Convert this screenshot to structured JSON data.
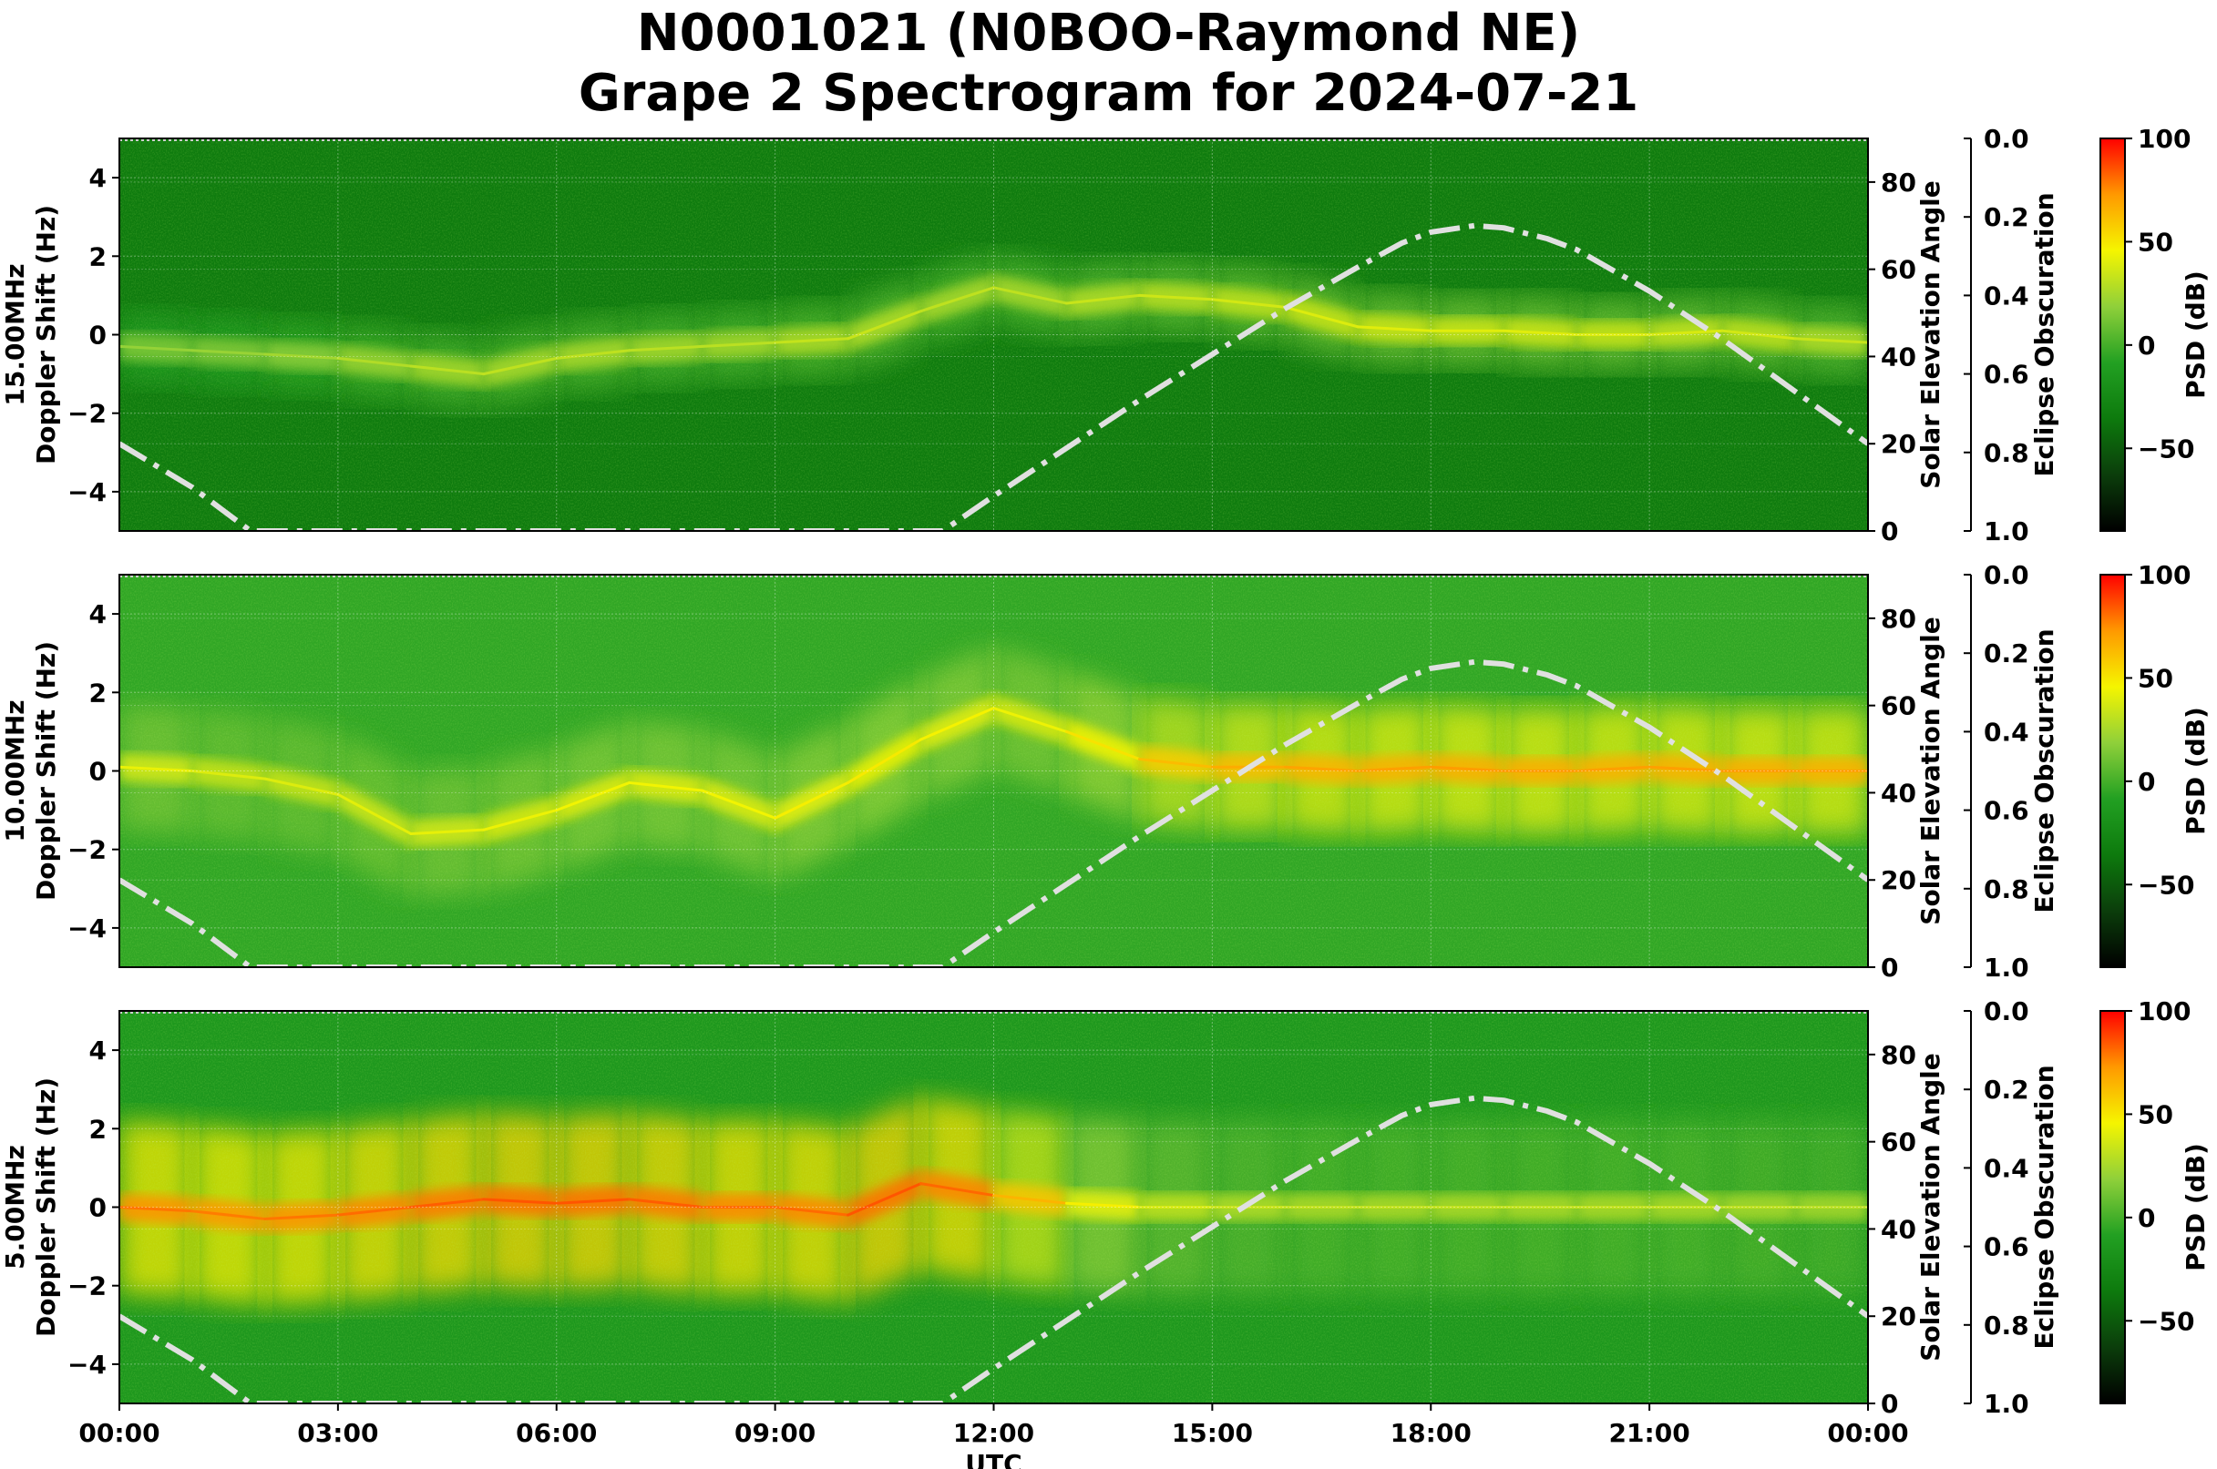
{
  "title": {
    "line1": "N0001021 (N0BOO-Raymond NE)",
    "line2": "Grape 2 Spectrogram for 2024-07-21"
  },
  "chart_data": {
    "type": "heatmap",
    "x_axis": {
      "label": "UTC",
      "ticks": [
        "00:00",
        "03:00",
        "06:00",
        "09:00",
        "12:00",
        "15:00",
        "18:00",
        "21:00",
        "00:00"
      ],
      "range_hours": [
        0,
        24
      ]
    },
    "colorbar": {
      "label": "PSD (dB)",
      "range": [
        -90,
        100
      ],
      "ticks": [
        100,
        50,
        0,
        -50
      ],
      "tick_labels": [
        "100",
        "50",
        "0",
        "−50"
      ],
      "colors": [
        "#000000",
        "#0b3d0b",
        "#0d7a0d",
        "#22a022",
        "#8fd03a",
        "#f5f500",
        "#ff9900",
        "#ff0000"
      ]
    },
    "right_axis": {
      "label": "Solar Elevation Angle",
      "range": [
        0,
        90
      ],
      "ticks": [
        0,
        20,
        40,
        60,
        80
      ]
    },
    "eclipse_axis": {
      "label": "Eclipse Obscuration",
      "range": [
        0,
        1
      ],
      "inverted": true,
      "tick_labels": [
        "0.0",
        "0.2",
        "0.4",
        "0.6",
        "0.8",
        "1.0"
      ]
    },
    "solar_elevation_curve": {
      "style": "dash-dot",
      "color": "#e0e0e0",
      "hours": [
        0,
        1,
        1.8,
        11.3,
        12,
        13,
        14,
        15,
        16,
        17,
        17.6,
        18,
        18.6,
        19,
        19.6,
        20,
        21,
        22,
        23,
        24
      ],
      "degrees": [
        20,
        10,
        0,
        0,
        8,
        19,
        30,
        40.5,
        51,
        60.5,
        66,
        68.5,
        70,
        69.5,
        67,
        64.5,
        55,
        44,
        32,
        20
      ]
    },
    "panels": [
      {
        "label": "15.00MHz",
        "ylabel": "Doppler Shift (Hz)",
        "ylim": [
          -5,
          5
        ],
        "yticks": [
          4,
          2,
          0,
          -2,
          -4
        ],
        "ytick_labels": [
          "4",
          "2",
          "0",
          "−2",
          "−4"
        ],
        "background_db": -35,
        "trace_hours": [
          0,
          1,
          2,
          3,
          4,
          5,
          6,
          7,
          8,
          9,
          10,
          11,
          12,
          13,
          14,
          15,
          16,
          17,
          18,
          19,
          20,
          21,
          22,
          23,
          24
        ],
        "trace_hz": [
          -0.3,
          -0.4,
          -0.5,
          -0.6,
          -0.8,
          -1.0,
          -0.6,
          -0.4,
          -0.3,
          -0.2,
          -0.1,
          0.6,
          1.2,
          0.8,
          1.0,
          0.9,
          0.7,
          0.2,
          0.1,
          0.1,
          0.0,
          0.0,
          0.1,
          -0.1,
          -0.2
        ],
        "trace_db": [
          20,
          20,
          22,
          25,
          30,
          30,
          32,
          30,
          30,
          30,
          35,
          32,
          30,
          32,
          35,
          35,
          38,
          40,
          40,
          40,
          40,
          38,
          38,
          35,
          32
        ],
        "spread_hz": 0.9
      },
      {
        "label": "10.00MHz",
        "ylabel": "Doppler Shift (Hz)",
        "ylim": [
          -5,
          5
        ],
        "yticks": [
          4,
          2,
          0,
          -2,
          -4
        ],
        "ytick_labels": [
          "4",
          "2",
          "0",
          "−2",
          "−4"
        ],
        "background_db": -5,
        "trace_hours": [
          0,
          1,
          2,
          3,
          4,
          5,
          6,
          7,
          8,
          9,
          10,
          11,
          12,
          13,
          14,
          15,
          16,
          17,
          18,
          19,
          20,
          21,
          22,
          23,
          24
        ],
        "trace_hz": [
          0.1,
          0.0,
          -0.2,
          -0.6,
          -1.6,
          -1.5,
          -1.0,
          -0.3,
          -0.5,
          -1.2,
          -0.3,
          0.8,
          1.6,
          1.0,
          0.3,
          0.1,
          0.1,
          0.0,
          0.1,
          0.0,
          0.0,
          0.1,
          0.0,
          0.0,
          0.0
        ],
        "trace_db": [
          45,
          40,
          38,
          40,
          42,
          42,
          45,
          45,
          45,
          45,
          50,
          48,
          45,
          42,
          60,
          65,
          70,
          70,
          72,
          72,
          72,
          70,
          72,
          72,
          70
        ],
        "spread_hz": 1.6
      },
      {
        "label": "5.00MHz",
        "ylabel": "Doppler Shift (Hz)",
        "ylim": [
          -5,
          5
        ],
        "yticks": [
          4,
          2,
          0,
          -2,
          -4
        ],
        "ytick_labels": [
          "4",
          "2",
          "0",
          "−2",
          "−4"
        ],
        "background_db": -15,
        "trace_hours": [
          0,
          1,
          2,
          3,
          4,
          5,
          6,
          7,
          8,
          9,
          10,
          11,
          12,
          13,
          14,
          15,
          16,
          17,
          18,
          19,
          20,
          21,
          22,
          23,
          24
        ],
        "trace_hz": [
          0.0,
          -0.1,
          -0.3,
          -0.2,
          0.0,
          0.2,
          0.1,
          0.2,
          0.0,
          0.0,
          -0.2,
          0.6,
          0.3,
          0.1,
          0.0,
          0.0,
          0.0,
          0.0,
          0.0,
          0.0,
          0.0,
          0.0,
          0.0,
          0.0,
          0.0
        ],
        "trace_db": [
          80,
          78,
          78,
          80,
          82,
          85,
          85,
          85,
          82,
          80,
          82,
          88,
          75,
          55,
          40,
          35,
          32,
          32,
          32,
          32,
          32,
          32,
          32,
          30,
          30
        ],
        "spread_hz": 2.2
      }
    ]
  }
}
